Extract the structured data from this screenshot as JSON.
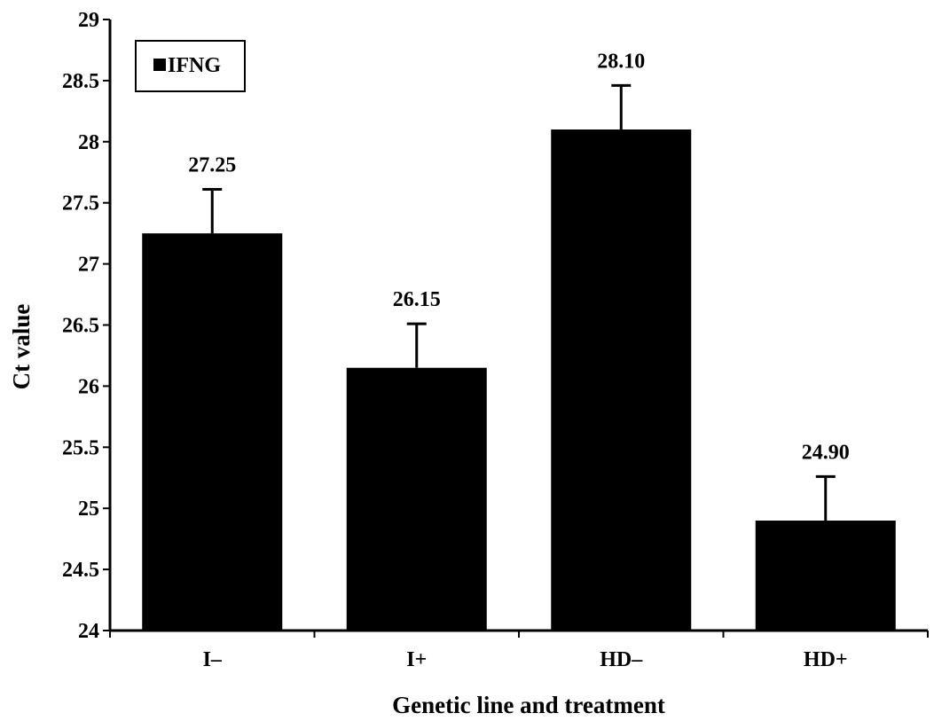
{
  "chart_data": {
    "type": "bar",
    "categories": [
      "I–",
      "I+",
      "HD–",
      "HD+"
    ],
    "series": [
      {
        "name": "IFNG",
        "values": [
          27.25,
          26.15,
          28.1,
          24.9
        ],
        "error_upper": [
          27.61,
          26.51,
          28.46,
          25.26
        ],
        "value_labels": [
          "27.25",
          "26.15",
          "28.10",
          "24.90"
        ]
      }
    ],
    "xlabel": "Genetic line and treatment",
    "ylabel": "Ct value",
    "ylim": [
      24,
      29
    ],
    "yticks": [
      "24",
      "24.5",
      "25",
      "25.5",
      "26",
      "26.5",
      "27",
      "27.5",
      "28",
      "28.5",
      "29"
    ],
    "legend": {
      "position": "top-left",
      "entries": [
        "IFNG"
      ]
    },
    "grid": false,
    "colors": {
      "bar": "#000000",
      "axis": "#000000",
      "background": "#ffffff"
    }
  }
}
